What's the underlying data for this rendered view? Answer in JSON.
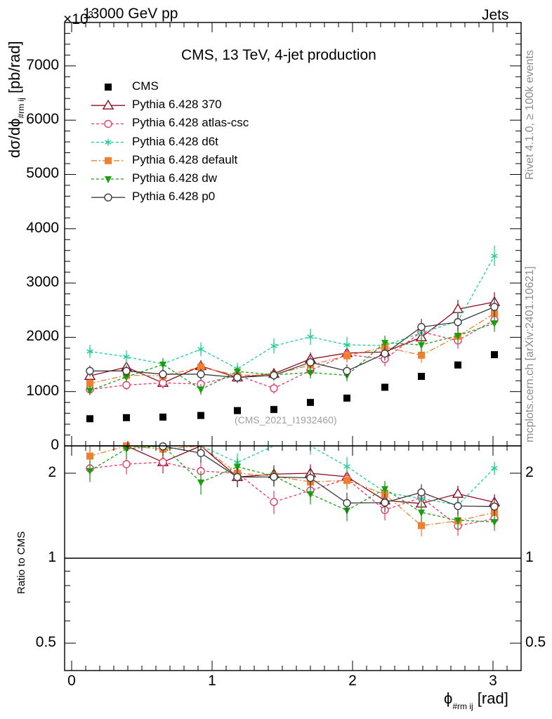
{
  "header": {
    "left": "13000 GeV pp",
    "right": "Jets",
    "exponent": "×10",
    "exponent_sup": "3"
  },
  "side_labels": {
    "rivet": "Rivet 4.1.0, ≥ 100k events",
    "mcplots": "mcplots.cern.ch [arXiv:2401.10621]"
  },
  "chart_data": {
    "type": "scatter",
    "title": "CMS, 13 TeV, 4-jet production",
    "watermark": "(CMS_2021_I1932460)",
    "ylabel_main": "dσ/dϕ",
    "ylabel_sub": "#rm ij",
    "ylabel_unit": "[pb/rad]",
    "ylabel_ratio": "Ratio to CMS",
    "xlabel": "ϕ",
    "xlabel_sub": "#rm ij",
    "xlabel_unit": "[rad]",
    "xlim": [
      -0.05,
      3.2
    ],
    "ylim_main": [
      0,
      7800
    ],
    "ylim_ratio_log": [
      0.4,
      2.5
    ],
    "x_ticks": [
      "0",
      "1",
      "2",
      "3"
    ],
    "y_ticks_main": [
      "0",
      "1000",
      "2000",
      "3000",
      "4000",
      "5000",
      "6000",
      "7000"
    ],
    "y_ticks_ratio": [
      "0.5",
      "1",
      "2"
    ],
    "x": [
      0.13,
      0.39,
      0.65,
      0.92,
      1.18,
      1.44,
      1.7,
      1.96,
      2.23,
      2.49,
      2.75,
      3.01
    ],
    "reference": {
      "name": "CMS",
      "color": "#000000",
      "values": [
        500,
        520,
        530,
        560,
        650,
        670,
        800,
        880,
        1080,
        1280,
        1490,
        1680
      ]
    },
    "series": [
      {
        "name": "Pythia 6.428 370",
        "color": "#8b0a1e",
        "marker": "triangle-open",
        "dash": "",
        "values": [
          1290,
          1450,
          1160,
          1470,
          1260,
          1330,
          1600,
          1710,
          1730,
          2000,
          2520,
          2650
        ],
        "errors": [
          100,
          110,
          100,
          110,
          100,
          100,
          120,
          130,
          140,
          150,
          170,
          180
        ]
      },
      {
        "name": "Pythia 6.428 atlas-csc",
        "color": "#e6396a",
        "marker": "circle-open",
        "dash": "4,3",
        "values": [
          1040,
          1120,
          1160,
          1140,
          1300,
          1060,
          1390,
          1680,
          1600,
          2100,
          1940,
          2320
        ],
        "errors": [
          90,
          90,
          90,
          100,
          100,
          100,
          110,
          120,
          130,
          140,
          150,
          160
        ]
      },
      {
        "name": "Pythia 6.428 d6t",
        "color": "#1fcf93",
        "marker": "star",
        "dash": "4,3",
        "values": [
          1740,
          1640,
          1510,
          1780,
          1420,
          1840,
          2010,
          1860,
          1850,
          2080,
          2300,
          3500
        ],
        "errors": [
          120,
          120,
          110,
          130,
          110,
          140,
          150,
          150,
          150,
          160,
          170,
          190
        ]
      },
      {
        "name": "Pythia 6.428 default",
        "color": "#f07f30",
        "marker": "square",
        "dash": "8,3,2,3",
        "values": [
          1150,
          1300,
          1290,
          1450,
          1300,
          1310,
          1490,
          1660,
          1820,
          1670,
          2020,
          2440
        ],
        "errors": [
          90,
          100,
          100,
          110,
          100,
          100,
          110,
          120,
          130,
          140,
          150,
          160
        ]
      },
      {
        "name": "Pythia 6.428 dw",
        "color": "#1a9e10",
        "marker": "triangle-down",
        "dash": "4,3",
        "values": [
          1020,
          1270,
          1500,
          1040,
          1370,
          1310,
          1350,
          1300,
          1900,
          1860,
          2030,
          2260
        ],
        "errors": [
          90,
          100,
          110,
          100,
          100,
          100,
          110,
          110,
          130,
          140,
          150,
          160
        ]
      },
      {
        "name": "Pythia 6.428 p0",
        "color": "#3c3c3c",
        "marker": "circle-open",
        "dash": "",
        "values": [
          1380,
          1380,
          1320,
          1320,
          1260,
          1300,
          1540,
          1380,
          1700,
          2190,
          2280,
          2560
        ],
        "errors": [
          100,
          100,
          100,
          100,
          100,
          100,
          110,
          120,
          130,
          150,
          160,
          180
        ]
      }
    ]
  }
}
